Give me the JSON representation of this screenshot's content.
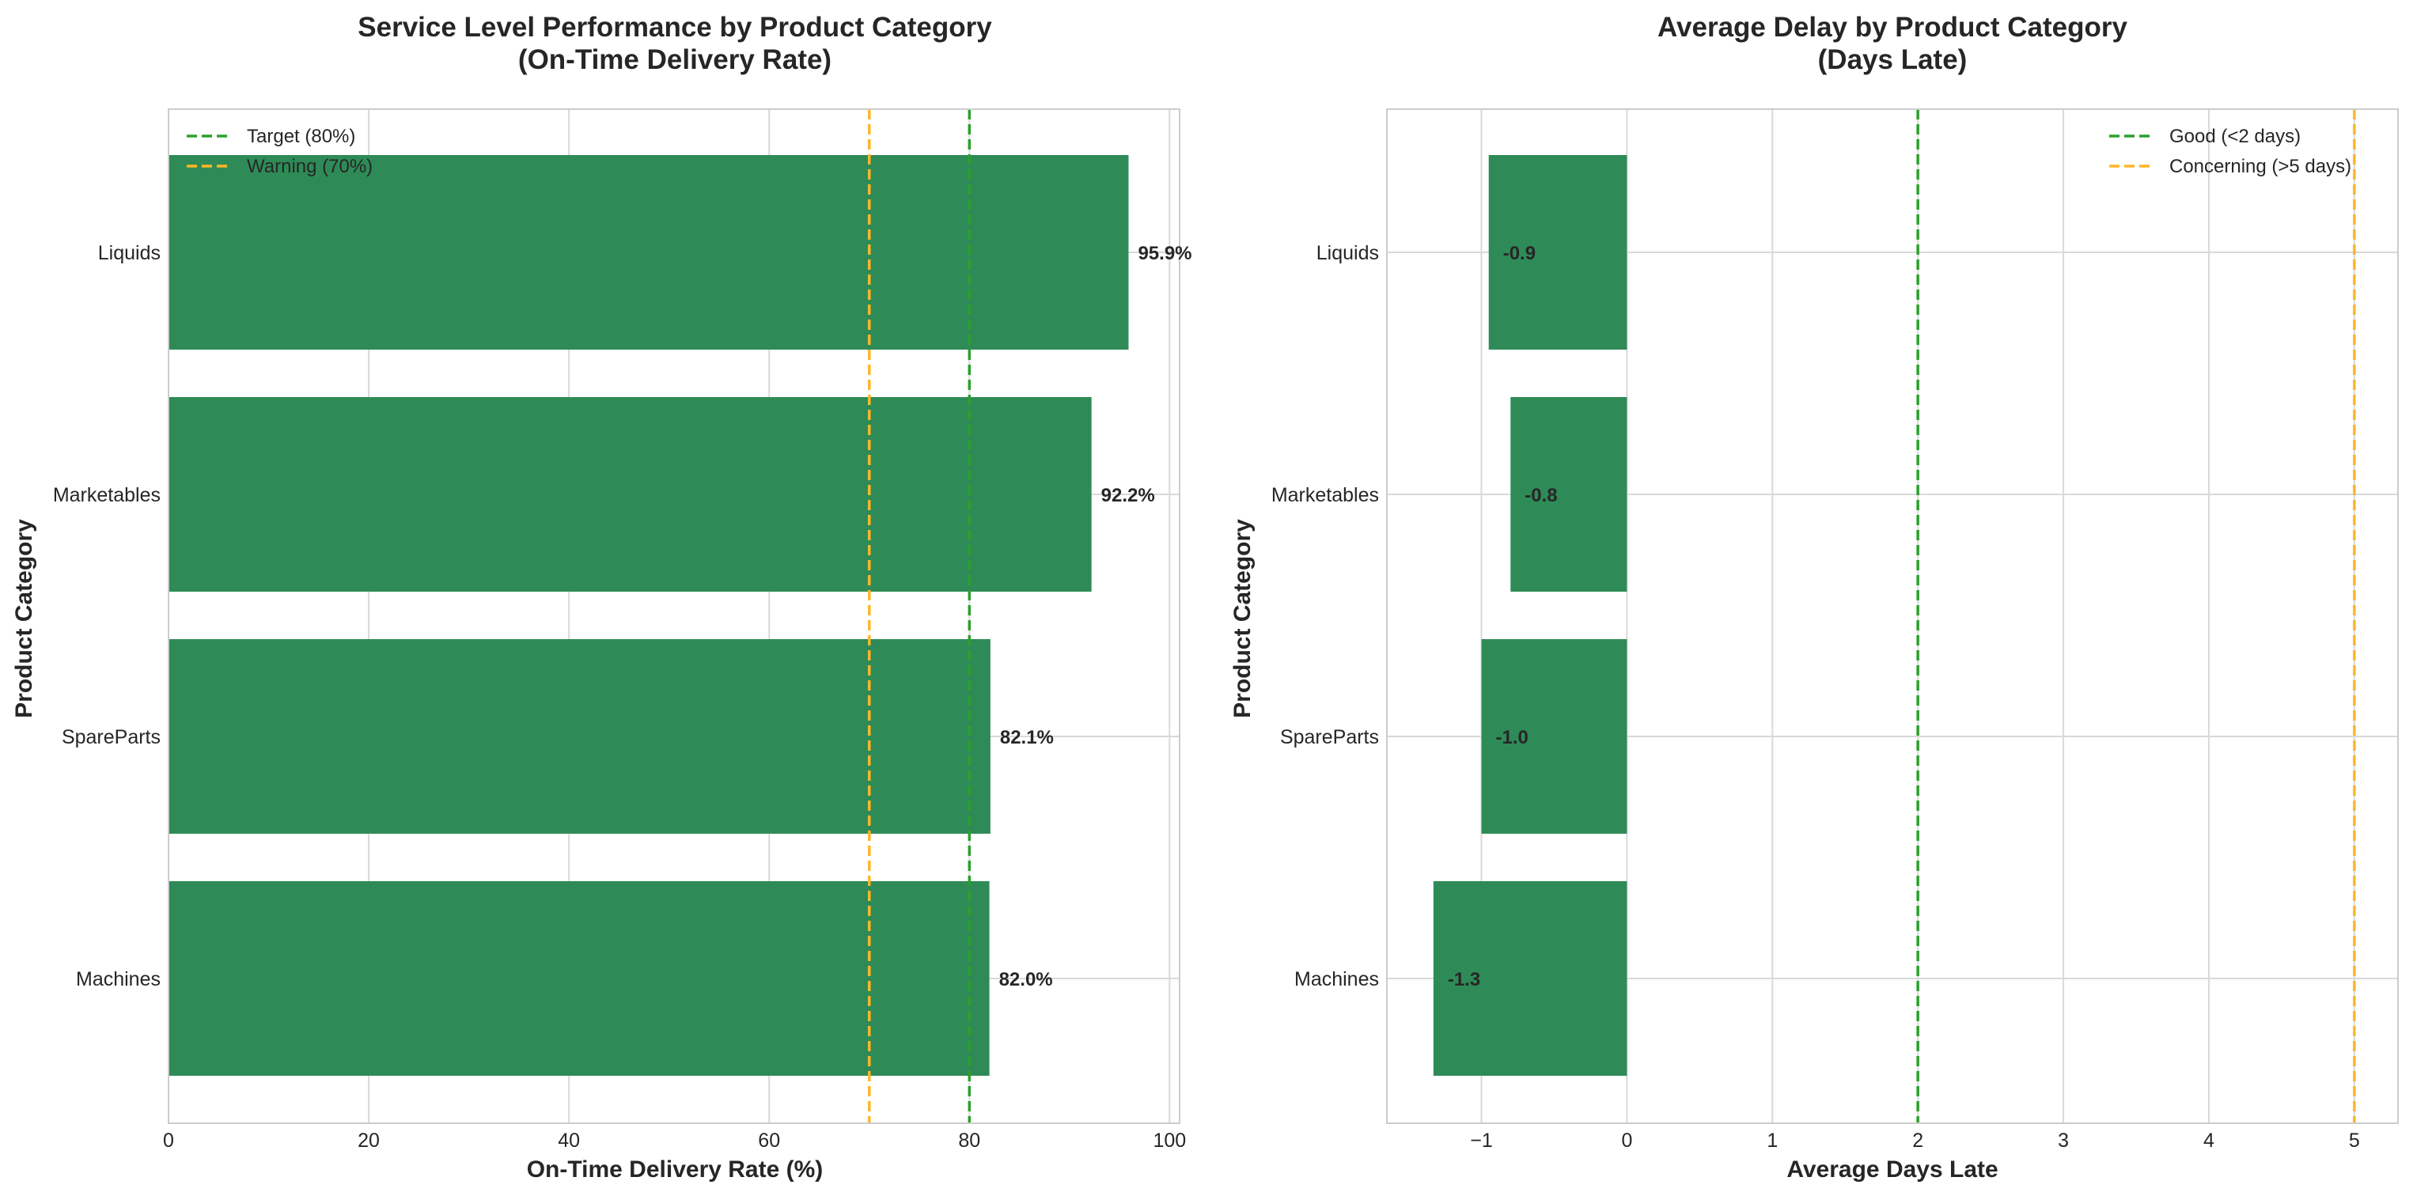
{
  "chart_data": [
    {
      "type": "bar",
      "orientation": "horizontal",
      "title_lines": [
        "Service Level Performance by Product Category",
        "(On-Time Delivery Rate)"
      ],
      "xlabel": "On-Time Delivery Rate (%)",
      "ylabel": "Product Category",
      "categories": [
        "Liquids",
        "Marketables",
        "SpareParts",
        "Machines"
      ],
      "values": [
        95.9,
        92.2,
        82.1,
        82.0
      ],
      "data_labels": [
        "95.9%",
        "92.2%",
        "82.1%",
        "82.0%"
      ],
      "xlim": [
        0,
        101
      ],
      "xticks": [
        0,
        20,
        40,
        60,
        80,
        100
      ],
      "bar_color": "#2e8b57",
      "grid": true,
      "legend_position": "top-left",
      "reference_lines": [
        {
          "label": "Target (80%)",
          "value": 80,
          "color": "#2ca02c"
        },
        {
          "label": "Warning (70%)",
          "value": 70,
          "color": "#ffb627"
        }
      ]
    },
    {
      "type": "bar",
      "orientation": "horizontal",
      "title_lines": [
        "Average Delay by Product Category",
        "(Days Late)"
      ],
      "xlabel": "Average Days Late",
      "ylabel": "Product Category",
      "categories": [
        "Liquids",
        "Marketables",
        "SpareParts",
        "Machines"
      ],
      "values": [
        -0.95,
        -0.8,
        -1.0,
        -1.33
      ],
      "data_labels": [
        "-0.9",
        "-0.8",
        "-1.0",
        "-1.3"
      ],
      "xlim": [
        -1.65,
        5.3
      ],
      "xticks": [
        -1,
        0,
        1,
        2,
        3,
        4,
        5
      ],
      "xtick_labels": [
        "−1",
        "0",
        "1",
        "2",
        "3",
        "4",
        "5"
      ],
      "bar_color": "#2e8b57",
      "grid": true,
      "legend_position": "top-right",
      "reference_lines": [
        {
          "label": "Good (<2 days)",
          "value": 2,
          "color": "#2ca02c"
        },
        {
          "label": "Concerning (>5 days)",
          "value": 5,
          "color": "#ffb627"
        }
      ]
    }
  ]
}
